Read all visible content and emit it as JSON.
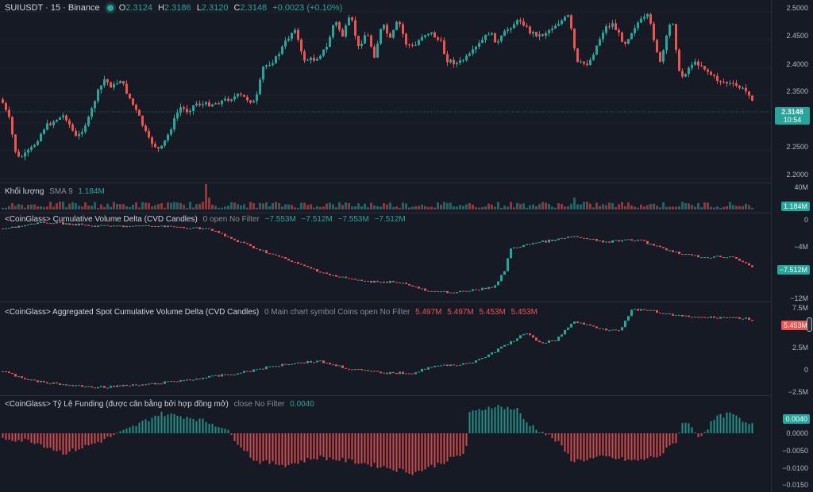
{
  "header": {
    "symbol": "SUIUSDT · 15 · Binance",
    "o_label": "O",
    "o_value": "2.3124",
    "h_label": "H",
    "h_value": "2.3186",
    "l_label": "L",
    "l_value": "2.3120",
    "c_label": "C",
    "c_value": "2.3148",
    "change": "+0.0023 (+0.10%)"
  },
  "volume_pane": {
    "label": "Khối lượng",
    "sma": "SMA 9",
    "value": "1.184M",
    "axis_top": "40M",
    "tag": "1.184M"
  },
  "cvd_pane": {
    "label": "<CoinGlass> Cumulative Volume Delta (CVD Candles)",
    "params": "0 open No Filter",
    "values": [
      "−7.553M",
      "−7.512M",
      "−7.553M",
      "−7.512M"
    ],
    "axis_ticks": [
      "0",
      "−4M",
      "−12M"
    ],
    "tag": "−7.512M"
  },
  "spot_cvd_pane": {
    "label": "<CoinGlass> Aggregated Spot Cumulative Volume Delta (CVD Candles)",
    "params": "0 Main chart symbol Coins open No Filter",
    "values": [
      "5.497M",
      "5.497M",
      "5.453M",
      "5.453M"
    ],
    "axis_ticks": [
      "7.5M",
      "2.5M",
      "0",
      "−2.5M"
    ],
    "tag": "5.453M"
  },
  "funding_pane": {
    "label": "<CoinGlass> Tỷ Lệ Funding (được cân bằng bởi hợp đồng mở)",
    "params": "close No Filter",
    "value": "0.0040",
    "axis_ticks": [
      "0.0000",
      "−0.0050",
      "−0.0100",
      "−0.0150"
    ],
    "tag": "0.0040"
  },
  "price_axis": {
    "ticks": [
      "2.5000",
      "2.4500",
      "2.4000",
      "2.3500",
      "2.2500",
      "2.2000"
    ],
    "last_price": "2.3148",
    "countdown": "10:54"
  },
  "colors": {
    "up": "#26a69a",
    "down": "#ef5350",
    "background": "#161a25",
    "grid": "#1f2430"
  }
}
